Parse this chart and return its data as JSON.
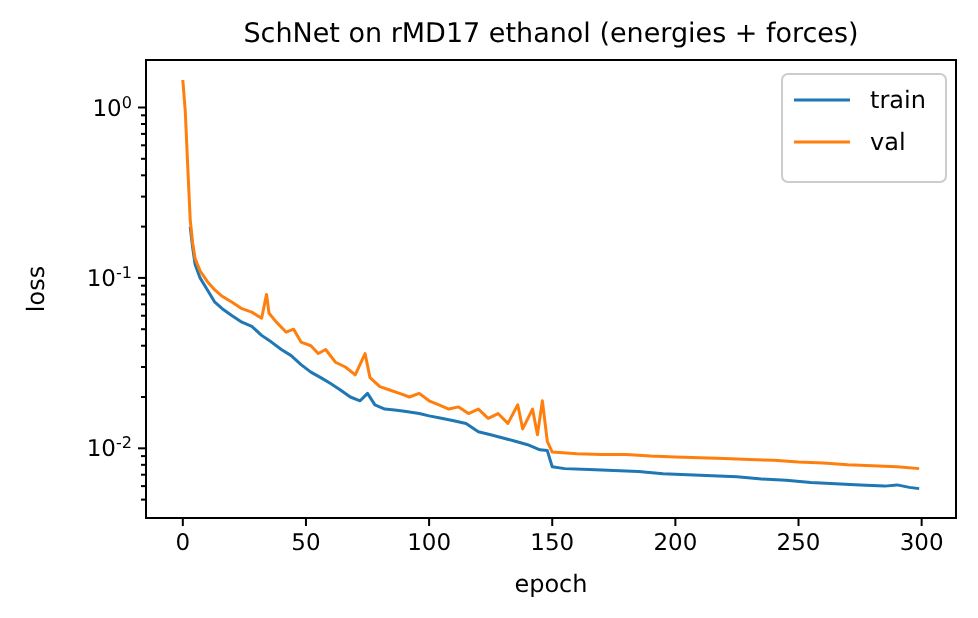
{
  "chart_data": {
    "type": "line",
    "title": "SchNet on rMD17 ethanol (energies + forces)",
    "xlabel": "epoch",
    "ylabel": "loss",
    "log": "y",
    "legend": "top right",
    "grid": false,
    "marker": "none",
    "line_style": "solid",
    "xlim": [
      -14.95,
      313.95
    ],
    "xticks": [
      0,
      50,
      100,
      150,
      200,
      250,
      300
    ],
    "ylim": [
      0.0039,
      1.9
    ],
    "yticks": [
      {
        "value": 0.005,
        "label": null
      },
      {
        "value": 0.006,
        "label": null
      },
      {
        "value": 0.007,
        "label": null
      },
      {
        "value": 0.008,
        "label": null
      },
      {
        "value": 0.009,
        "label": null
      },
      {
        "value": 0.01,
        "label": "10$^{-2}$"
      },
      {
        "value": 0.02,
        "label": null
      },
      {
        "value": 0.03,
        "label": null
      },
      {
        "value": 0.04,
        "label": null
      },
      {
        "value": 0.05,
        "label": null
      },
      {
        "value": 0.06,
        "label": null
      },
      {
        "value": 0.07,
        "label": null
      },
      {
        "value": 0.08,
        "label": null
      },
      {
        "value": 0.09,
        "label": null
      },
      {
        "value": 0.1,
        "label": "10$^{-1}$"
      },
      {
        "value": 0.2,
        "label": null
      },
      {
        "value": 0.3,
        "label": null
      },
      {
        "value": 0.4,
        "label": null
      },
      {
        "value": 0.5,
        "label": null
      },
      {
        "value": 0.6,
        "label": null
      },
      {
        "value": 0.7,
        "label": null
      },
      {
        "value": 0.8,
        "label": null
      },
      {
        "value": 0.9,
        "label": null
      },
      {
        "value": 1,
        "label": "10$^{0}$"
      }
    ],
    "series": [
      {
        "name": "train",
        "color": "#1f77b4",
        "x": [
          3,
          4,
          5,
          7,
          10,
          13,
          16,
          20,
          24,
          28,
          32,
          36,
          40,
          44,
          48,
          52,
          56,
          60,
          64,
          68,
          72,
          75,
          78,
          82,
          86,
          90,
          96,
          100,
          105,
          110,
          115,
          120,
          125,
          130,
          135,
          140,
          145,
          148,
          150,
          155,
          165,
          175,
          185,
          195,
          205,
          215,
          225,
          235,
          245,
          255,
          265,
          275,
          285,
          290,
          295,
          299
        ],
        "values": [
          0.2,
          0.15,
          0.12,
          0.1,
          0.085,
          0.072,
          0.066,
          0.06,
          0.055,
          0.052,
          0.046,
          0.042,
          0.038,
          0.035,
          0.031,
          0.028,
          0.026,
          0.024,
          0.022,
          0.02,
          0.019,
          0.021,
          0.018,
          0.017,
          0.0168,
          0.0165,
          0.016,
          0.0155,
          0.015,
          0.0145,
          0.014,
          0.0125,
          0.012,
          0.0115,
          0.011,
          0.0105,
          0.0098,
          0.0097,
          0.0078,
          0.0076,
          0.0075,
          0.0074,
          0.0073,
          0.0071,
          0.007,
          0.0069,
          0.0068,
          0.0066,
          0.0065,
          0.0063,
          0.0062,
          0.0061,
          0.006,
          0.0061,
          0.0059,
          0.0058
        ]
      },
      {
        "name": "val",
        "color": "#ff7f0e",
        "x": [
          0,
          1,
          2,
          3,
          4,
          5,
          7,
          10,
          13,
          16,
          20,
          24,
          28,
          32,
          34,
          35,
          38,
          42,
          45,
          48,
          52,
          55,
          58,
          62,
          66,
          70,
          74,
          76,
          80,
          84,
          88,
          92,
          96,
          100,
          104,
          108,
          112,
          116,
          120,
          124,
          128,
          132,
          136,
          138,
          142,
          144,
          146,
          148,
          150,
          160,
          170,
          180,
          190,
          200,
          210,
          220,
          230,
          240,
          250,
          260,
          270,
          280,
          290,
          299
        ],
        "values": [
          1.45,
          0.95,
          0.45,
          0.22,
          0.16,
          0.13,
          0.11,
          0.095,
          0.085,
          0.078,
          0.072,
          0.066,
          0.063,
          0.058,
          0.08,
          0.062,
          0.055,
          0.048,
          0.05,
          0.042,
          0.04,
          0.036,
          0.038,
          0.032,
          0.03,
          0.027,
          0.036,
          0.026,
          0.023,
          0.022,
          0.021,
          0.02,
          0.021,
          0.019,
          0.018,
          0.017,
          0.0175,
          0.016,
          0.017,
          0.015,
          0.016,
          0.014,
          0.018,
          0.013,
          0.017,
          0.012,
          0.019,
          0.011,
          0.0095,
          0.0093,
          0.0092,
          0.0092,
          0.009,
          0.0089,
          0.0088,
          0.0087,
          0.0086,
          0.0085,
          0.0083,
          0.0082,
          0.008,
          0.0079,
          0.0078,
          0.0076
        ]
      }
    ]
  }
}
